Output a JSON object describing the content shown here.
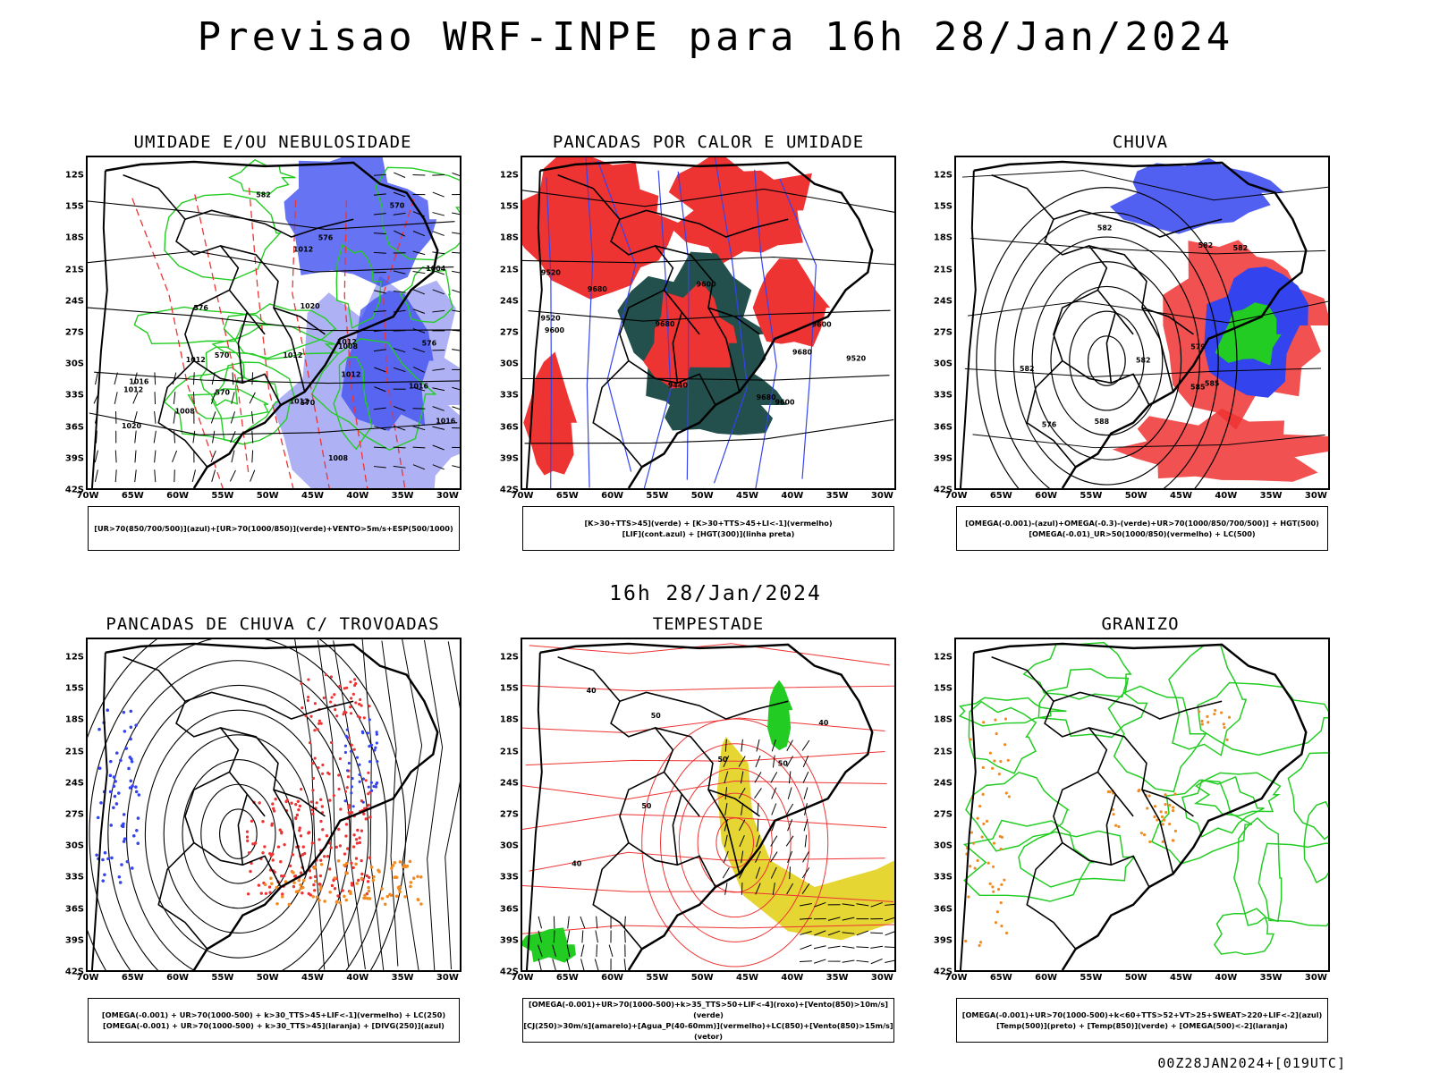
{
  "title": "Previsao WRF-INPE  para 16h 28/Jan/2024",
  "subtitle": "16h 28/Jan/2024",
  "footer": "00Z28JAN2024+[019UTC]",
  "axes": {
    "lat": [
      "12S",
      "15S",
      "18S",
      "21S",
      "24S",
      "27S",
      "30S",
      "33S",
      "36S",
      "39S",
      "42S"
    ],
    "lon": [
      "70W",
      "65W",
      "60W",
      "55W",
      "50W",
      "45W",
      "40W",
      "35W",
      "30W"
    ]
  },
  "colors": {
    "green": "#22cc22",
    "blue": "#3344ee",
    "lavender": "#9a9ff2",
    "red": "#ee3333",
    "teal": "#234f4c",
    "yellow": "#e6d634",
    "orange": "#f08a22",
    "black": "#000000"
  },
  "panels": [
    {
      "id": "umidade",
      "title": "UMIDADE E/OU NEBULOSIDADE",
      "legend": [
        "[UR>70(850/700/500)](azul)+[UR>70(1000/850)](verde)+VENTO>5m/s+ESP(500/1000)"
      ],
      "labels": [
        "1016",
        "1012",
        "1012",
        "1008",
        "1008",
        "1004",
        "1012",
        "1012",
        "1012",
        "1016",
        "1016",
        "1012",
        "1012",
        "1020",
        "1020",
        "1008",
        "570",
        "576",
        "576",
        "576",
        "582",
        "570",
        "570",
        "570"
      ]
    },
    {
      "id": "pancadas-calor",
      "title": "PANCADAS POR CALOR E UMIDADE",
      "legend": [
        "[K>30+TTS>45](verde) + [K>30+TTS>45+LI<-1](vermelho)",
        "[LIF](cont.azul) + [HGT(300)](linha preta)"
      ],
      "labels": [
        "9680",
        "9680",
        "9680",
        "9600",
        "9520",
        "9520",
        "9600",
        "9440",
        "9680",
        "9600",
        "9520",
        "9600"
      ]
    },
    {
      "id": "chuva",
      "title": "CHUVA",
      "legend": [
        "[OMEGA(-0.001)-(azul)+OMEGA(-0.3)-(verde)+UR>70(1000/850/700/500)] + HGT(500)",
        "[OMEGA(-0.01)_UR>50(1000/850)(vermelho) + LC(500)"
      ],
      "labels": [
        "585",
        "582",
        "579",
        "576",
        "582",
        "582",
        "582",
        "588",
        "585",
        "582"
      ]
    },
    {
      "id": "trovoadas",
      "title": "PANCADAS DE CHUVA C/ TROVOADAS",
      "legend": [
        "[OMEGA(-0.001) + UR>70(1000-500) + k>30_TTS>45+LIF<-1](vermelho) + LC(250)",
        "[OMEGA(-0.001) + UR>70(1000-500) + k>30_TTS>45](laranja) + [DIVG(250)](azul)"
      ],
      "labels": []
    },
    {
      "id": "tempestade",
      "title": "TEMPESTADE",
      "legend": [
        "[OMEGA(-0.001)+UR>70(1000-500)+k>35_TTS>50+LIF<-4](roxo)+[Vento(850)>10m/s](verde)",
        "[CJ(250)>30m/s](amarelo)+[Agua_P(40-60mm)](vermelho)+LC(850)+[Vento(850)>15m/s](vetor)"
      ],
      "labels": [
        "40",
        "50",
        "40",
        "50",
        "40",
        "50",
        "50"
      ]
    },
    {
      "id": "granizo",
      "title": "GRANIZO",
      "legend": [
        "[OMEGA(-0.001)+UR>70(1000-500)+k<60+TTS>52+VT>25+SWEAT>220+LIF<-2](azul)",
        "[Temp(500)](preto) + [Temp(850)](verde) + [OMEGA(500)<-2](laranja)"
      ],
      "labels": []
    }
  ]
}
